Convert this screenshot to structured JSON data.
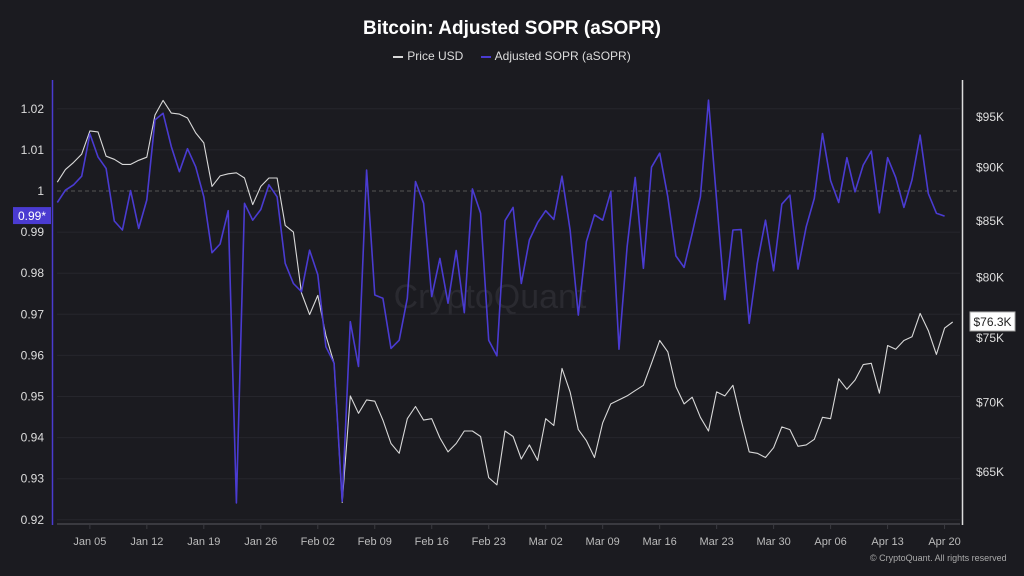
{
  "chart_data": {
    "type": "line",
    "title": "Bitcoin: Adjusted SOPR (aSOPR)",
    "legend_position": "top",
    "grid": true,
    "x_start_date": "Jan 01",
    "x_ticks": [
      "Jan 05",
      "Jan 12",
      "Jan 19",
      "Jan 26",
      "Feb 02",
      "Feb 09",
      "Feb 16",
      "Feb 23",
      "Mar 02",
      "Mar 09",
      "Mar 16",
      "Mar 23",
      "Mar 30",
      "Apr 06",
      "Apr 13",
      "Apr 20"
    ],
    "left_axis": {
      "ticks": [
        "1.02",
        "1.01",
        "1",
        "0.99",
        "0.98",
        "0.97",
        "0.96",
        "0.95",
        "0.94",
        "0.93",
        "0.92"
      ],
      "range": [
        0.92,
        1.02
      ],
      "reference_line": 1
    },
    "right_axis": {
      "ticks": [
        "$95K",
        "$90K",
        "$85K",
        "$80K",
        "$75K",
        "$70K",
        "$65K"
      ],
      "scale": "log",
      "unit": "USD thousands"
    },
    "current_labels": {
      "asopr": "0.99*",
      "price": "$76.3K"
    },
    "series": [
      {
        "name": "Price USD",
        "axis": "right",
        "color": "#d8d8d8",
        "values": [
          88.6,
          89.8,
          90.5,
          91.3,
          93.6,
          93.5,
          91.1,
          90.8,
          90.3,
          90.3,
          90.7,
          91.0,
          95.2,
          96.7,
          95.4,
          95.3,
          94.9,
          93.4,
          92.4,
          88.2,
          89.2,
          89.4,
          89.5,
          89.0,
          86.5,
          88.2,
          89.0,
          89.0,
          84.6,
          84.0,
          78.7,
          76.9,
          78.5,
          75.2,
          73.0,
          62.9,
          70.5,
          69.2,
          70.2,
          70.1,
          68.7,
          67.0,
          66.3,
          68.8,
          69.7,
          68.7,
          68.8,
          67.4,
          66.4,
          67.0,
          67.9,
          67.9,
          67.5,
          64.6,
          64.1,
          67.9,
          67.5,
          65.9,
          66.9,
          65.8,
          68.8,
          68.3,
          72.6,
          70.8,
          68.0,
          67.2,
          66.0,
          68.5,
          69.9,
          70.2,
          70.5,
          70.9,
          71.3,
          73.0,
          74.8,
          73.9,
          71.2,
          69.9,
          70.4,
          68.9,
          67.9,
          70.8,
          70.5,
          71.3,
          68.7,
          66.4,
          66.3,
          66.0,
          66.7,
          68.2,
          68.0,
          66.8,
          66.9,
          67.3,
          68.9,
          68.8,
          71.8,
          71.0,
          71.7,
          72.9,
          73.0,
          70.7,
          74.4,
          74.1,
          74.8,
          75.1,
          77.0,
          75.6,
          73.7,
          75.8,
          76.3
        ]
      },
      {
        "name": "Adjusted SOPR (aSOPR)",
        "axis": "left",
        "color": "#4a3bd1",
        "values": [
          0.9972,
          1.0002,
          1.0015,
          1.0036,
          1.0139,
          1.0083,
          1.0055,
          0.9927,
          0.9905,
          1.0001,
          0.9909,
          0.9978,
          1.0173,
          1.0189,
          1.0108,
          1.0047,
          1.0103,
          1.0059,
          0.9986,
          0.985,
          0.9871,
          0.9952,
          0.9241,
          0.997,
          0.9929,
          0.9955,
          1.0015,
          0.9986,
          0.9824,
          0.9775,
          0.9755,
          0.9856,
          0.9796,
          0.9621,
          0.9581,
          0.9245,
          0.9682,
          0.9573,
          1.0051,
          0.9747,
          0.9739,
          0.9617,
          0.9637,
          0.9739,
          1.0023,
          0.997,
          0.9743,
          0.9836,
          0.9727,
          0.9855,
          0.9704,
          1.0005,
          0.9946,
          0.9637,
          0.9599,
          0.9928,
          0.996,
          0.9775,
          0.9881,
          0.9923,
          0.9952,
          0.9931,
          1.0036,
          0.9905,
          0.9698,
          0.9877,
          0.9942,
          0.9929,
          0.9998,
          0.9615,
          0.9864,
          1.0033,
          0.9812,
          1.0058,
          1.0092,
          0.9986,
          0.9842,
          0.9814,
          0.9897,
          0.9986,
          1.0221,
          0.9978,
          0.9736,
          0.9905,
          0.9906,
          0.9678,
          0.9824,
          0.9929,
          0.9806,
          0.9968,
          0.999,
          0.981,
          0.9913,
          0.9982,
          1.014,
          1.0025,
          0.9972,
          1.0081,
          0.9998,
          1.0063,
          1.0097,
          0.9947,
          1.0081,
          1.0033,
          0.996,
          1.0027,
          1.0136,
          0.9994,
          0.9946,
          0.9939
        ]
      }
    ]
  },
  "watermark": "CryptoQuant",
  "footer": "© CryptoQuant. All rights reserved"
}
